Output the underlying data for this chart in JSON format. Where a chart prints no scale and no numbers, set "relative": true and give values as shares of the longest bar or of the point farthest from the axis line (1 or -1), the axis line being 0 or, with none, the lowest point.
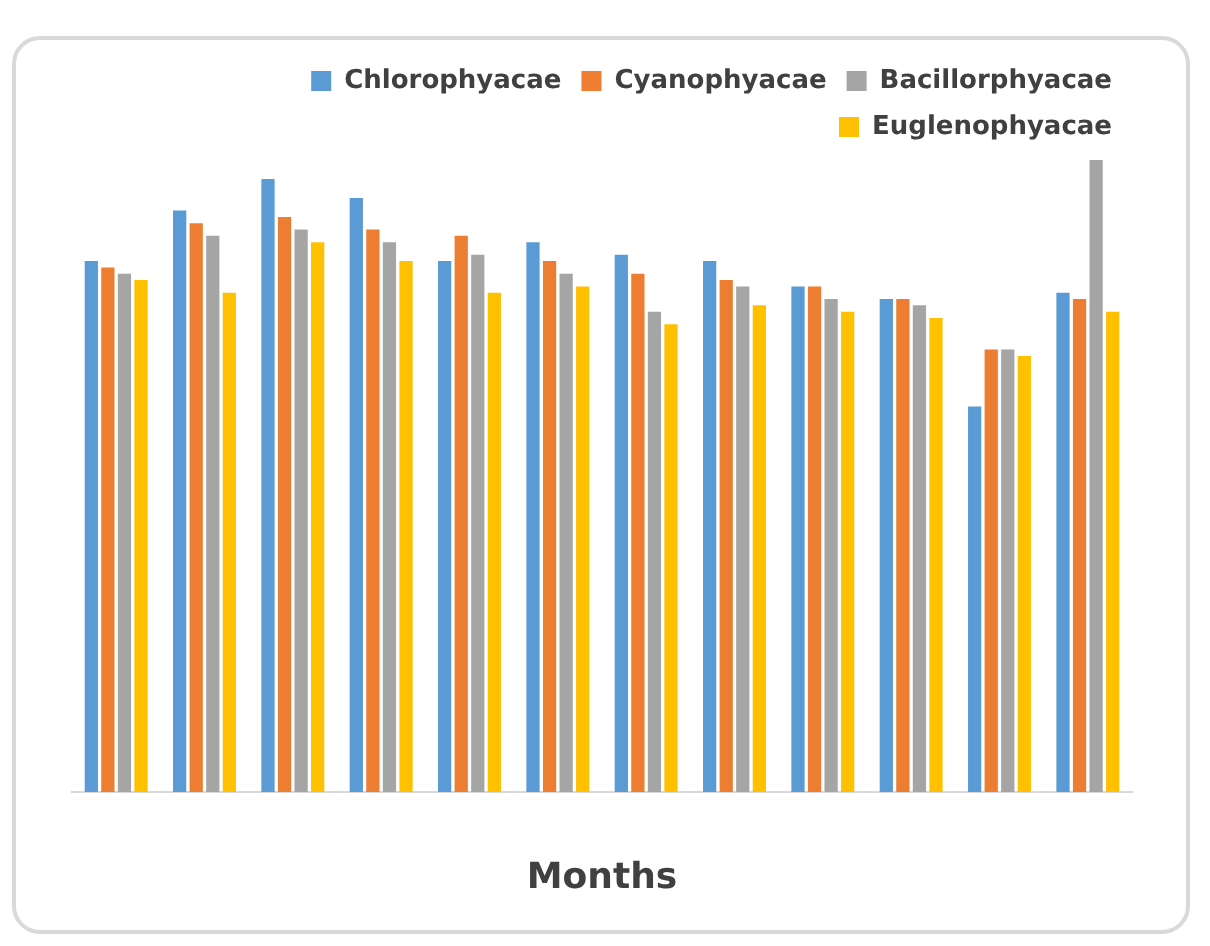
{
  "chart_data": {
    "type": "bar",
    "xlabel": "Months",
    "relative": true,
    "legend": "top right",
    "categories": [
      null,
      null,
      null,
      null,
      null,
      null,
      null,
      null,
      null,
      null,
      null,
      null
    ],
    "series": [
      {
        "name": "Chlorophyacae",
        "color": "#5b9bd5",
        "values": [
          0.84,
          0.92,
          0.97,
          0.94,
          0.84,
          0.87,
          0.85,
          0.84,
          0.8,
          0.78,
          0.61,
          0.79
        ]
      },
      {
        "name": "Cyanophyacae",
        "color": "#ed7d31",
        "values": [
          0.83,
          0.9,
          0.91,
          0.89,
          0.88,
          0.84,
          0.82,
          0.81,
          0.8,
          0.78,
          0.7,
          0.78
        ]
      },
      {
        "name": "Bacillorphyacae",
        "color": "#a5a5a5",
        "values": [
          0.82,
          0.88,
          0.89,
          0.87,
          0.85,
          0.82,
          0.76,
          0.8,
          0.78,
          0.77,
          0.7,
          1
        ]
      },
      {
        "name": "Euglenophyacae",
        "color": "#ffc000",
        "values": [
          0.81,
          0.79,
          0.87,
          0.84,
          0.79,
          0.8,
          0.74,
          0.77,
          0.76,
          0.75,
          0.69,
          0.76
        ]
      }
    ]
  }
}
